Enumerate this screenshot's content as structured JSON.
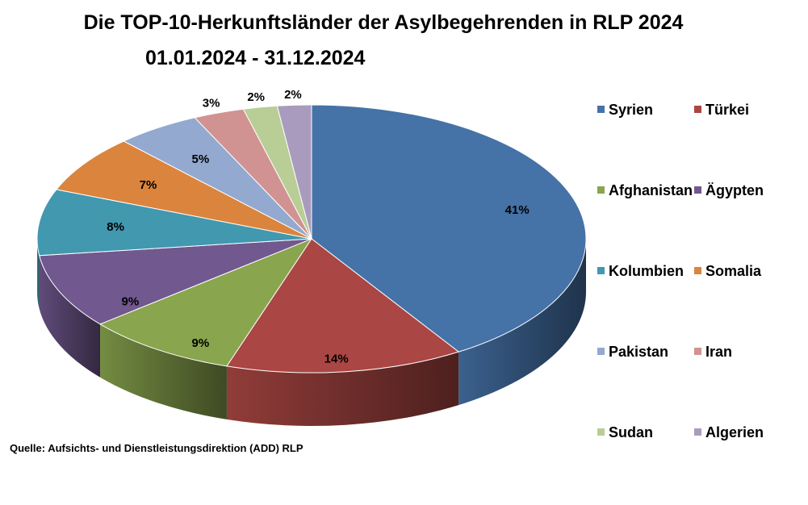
{
  "chart_data": {
    "type": "pie",
    "title": "Die TOP-10-Herkunftsländer der Asylbegehrenden in RLP 2024",
    "subtitle": "01.01.2024 - 31.12.2024",
    "source": "Quelle: Aufsichts- und Dienstleistungsdirektion (ADD) RLP",
    "legend_position": "right",
    "slices": [
      {
        "name": "Syrien",
        "value": 41,
        "label": "41%",
        "color": "#4572A7"
      },
      {
        "name": "Türkei",
        "value": 14,
        "label": "14%",
        "color": "#AA4643"
      },
      {
        "name": "Afghanistan",
        "value": 9,
        "label": "9%",
        "color": "#89A54E"
      },
      {
        "name": "Ägypten",
        "value": 9,
        "label": "9%",
        "color": "#71588F"
      },
      {
        "name": "Kolumbien",
        "value": 8,
        "label": "8%",
        "color": "#4198AF"
      },
      {
        "name": "Somalia",
        "value": 7,
        "label": "7%",
        "color": "#DB843D"
      },
      {
        "name": "Pakistan",
        "value": 5,
        "label": "5%",
        "color": "#93A9CF"
      },
      {
        "name": "Iran",
        "value": 3,
        "label": "3%",
        "color": "#D19392"
      },
      {
        "name": "Sudan",
        "value": 2,
        "label": "2%",
        "color": "#B9CD96"
      },
      {
        "name": "Algerien",
        "value": 2,
        "label": "2%",
        "color": "#A99BBD"
      }
    ]
  }
}
